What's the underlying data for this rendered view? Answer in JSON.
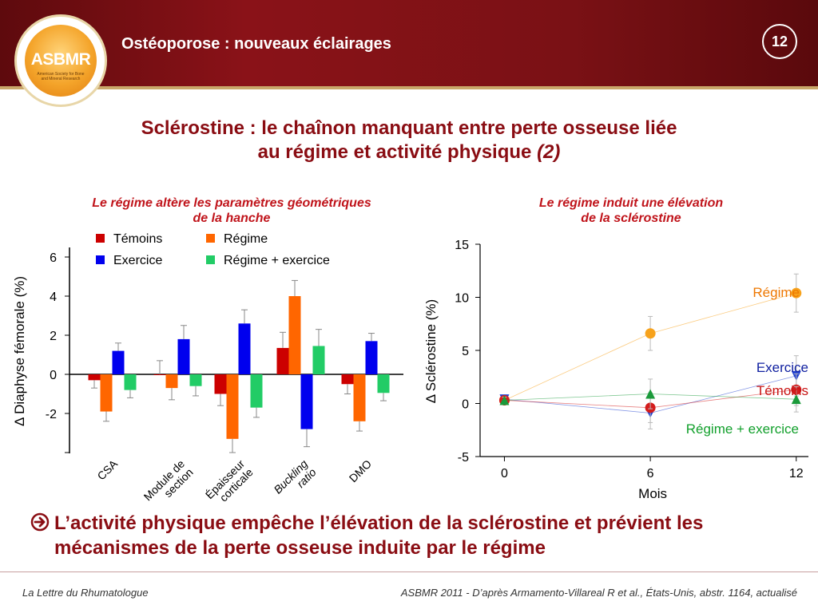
{
  "header": {
    "title": "Ostéoporose : nouveaux éclairages",
    "page_number": "12"
  },
  "logo": {
    "acronym": "ASBMR",
    "subtitle": "American Society for Bone and Mineral Research"
  },
  "main_title": {
    "line1": "Sclérostine : le chaînon manquant entre perte osseuse liée",
    "line2": "au régime et activité physique",
    "line2_ref": "(2)"
  },
  "left_panel": {
    "title_line1": "Le régime altère les paramètres géométriques",
    "title_line2": "de la hanche"
  },
  "right_panel": {
    "title_line1": "Le régime induit une élévation",
    "title_line2": "de la sclérostine"
  },
  "chart_data": [
    {
      "type": "bar",
      "ylabel": "Δ Diaphyse fémorale (%)",
      "yticks": [
        6,
        4,
        2,
        0,
        -2
      ],
      "ylim": [
        -4,
        6.5
      ],
      "categories": [
        {
          "lines": [
            "CSA"
          ],
          "italic": false
        },
        {
          "lines": [
            "Module de",
            "section"
          ],
          "italic": false
        },
        {
          "lines": [
            "Épaisseur",
            "corticale"
          ],
          "italic": false
        },
        {
          "lines": [
            "Buckling",
            "ratio"
          ],
          "italic": true
        },
        {
          "lines": [
            "DMO"
          ],
          "italic": false
        }
      ],
      "legend_position": "top",
      "series": [
        {
          "name": "Témoins",
          "color": "#cc0000",
          "values": [
            -0.3,
            0.0,
            -1.0,
            1.35,
            -0.5
          ],
          "errors": [
            0.4,
            0.7,
            0.6,
            0.8,
            0.5
          ]
        },
        {
          "name": "Régime",
          "color": "#ff6600",
          "values": [
            -1.9,
            -0.7,
            -3.3,
            4.0,
            -2.4
          ],
          "errors": [
            0.5,
            0.6,
            0.7,
            0.8,
            0.5
          ]
        },
        {
          "name": "Exercice",
          "color": "#0000ee",
          "values": [
            1.2,
            1.8,
            2.6,
            -2.8,
            1.7
          ],
          "errors": [
            0.4,
            0.7,
            0.7,
            0.9,
            0.4
          ]
        },
        {
          "name": "Régime + exercice",
          "color": "#22cc66",
          "values": [
            -0.8,
            -0.6,
            -1.7,
            1.45,
            -0.95
          ],
          "errors": [
            0.4,
            0.5,
            0.5,
            0.85,
            0.4
          ]
        }
      ]
    },
    {
      "type": "line",
      "xlabel": "Mois",
      "ylabel": "Δ Sclérostine (%)",
      "x": [
        0,
        6,
        12
      ],
      "xlim": [
        -1,
        12.5
      ],
      "ylim": [
        -5,
        15
      ],
      "yticks": [
        15,
        10,
        5,
        0,
        -5
      ],
      "series": [
        {
          "name": "Régime",
          "color": "#f7a21b",
          "label_color": "#ee7700",
          "marker": "circle",
          "values": [
            0.3,
            6.6,
            10.4
          ],
          "errors": [
            0.3,
            1.6,
            1.8
          ]
        },
        {
          "name": "Exercice",
          "color": "#1f3fd0",
          "label_color": "#1020a0",
          "marker": "triangle-down",
          "values": [
            0.4,
            -0.9,
            2.6
          ],
          "errors": [
            0.3,
            1.5,
            1.9
          ]
        },
        {
          "name": "Témoins",
          "color": "#d41c1c",
          "label_color": "#c81414",
          "marker": "circle",
          "values": [
            0.3,
            -0.4,
            1.3
          ],
          "errors": [
            0.3,
            1.4,
            1.5
          ]
        },
        {
          "name": "Régime + exercice",
          "color": "#1a9a3a",
          "label_color": "#12a02c",
          "marker": "triangle-up",
          "values": [
            0.3,
            0.9,
            0.4
          ],
          "errors": [
            0.3,
            1.4,
            1.2
          ]
        }
      ]
    }
  ],
  "conclusion": "L’activité physique empêche l’élévation de la sclérostine et prévient les mécanismes de la perte osseuse induite par le régime",
  "footer": {
    "left": "La Lettre du Rhumatologue",
    "right": "ASBMR 2011 - D’après Armamento-Villareal R et al., États-Unis, abstr. 1164, actualisé"
  }
}
